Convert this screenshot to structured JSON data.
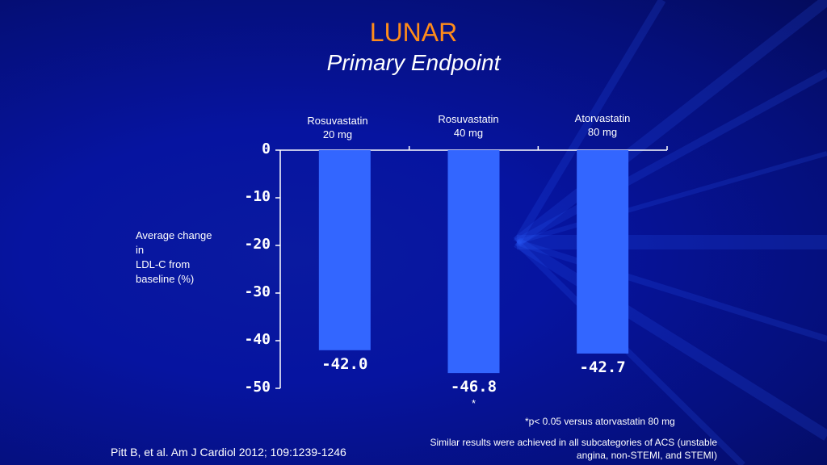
{
  "title": "LUNAR",
  "subtitle": "Primary Endpoint",
  "footnote": "*p< 0.05 versus atorvastatin 80 mg",
  "note": "Similar results were achieved in all subcategories of ACS (unstable angina, non-STEMI, and STEMI)",
  "citation": "Pitt B, et al. Am J Cardiol 2012; 109:1239-1246",
  "colors": {
    "bar": "#3366ff",
    "title": "#ff8c1a",
    "background": "#0614a0",
    "axis": "#ffffff"
  },
  "chart_data": {
    "type": "bar",
    "categories": [
      {
        "line1": "Rosuvastatin",
        "line2": "20 mg"
      },
      {
        "line1": "Rosuvastatin",
        "line2": "40 mg"
      },
      {
        "line1": "Atorvastatin",
        "line2": "80 mg"
      }
    ],
    "values": [
      -42.0,
      -46.8,
      -42.7
    ],
    "value_labels": [
      "-42.0",
      "-46.8",
      "-42.7"
    ],
    "significance": [
      "",
      "*",
      ""
    ],
    "ylabel": "Average change in LDL-C from baseline (%)",
    "ylabel_lines": [
      "Average change",
      "in",
      "LDL-C from",
      "baseline (%)"
    ],
    "ylim": [
      -50,
      0
    ],
    "yticks": [
      0,
      -10,
      -20,
      -30,
      -40,
      -50
    ],
    "ytick_labels": [
      "0",
      "-10",
      "-20",
      "-30",
      "-40",
      "-50"
    ],
    "category_position": "top",
    "grid": false,
    "legend": "none"
  }
}
